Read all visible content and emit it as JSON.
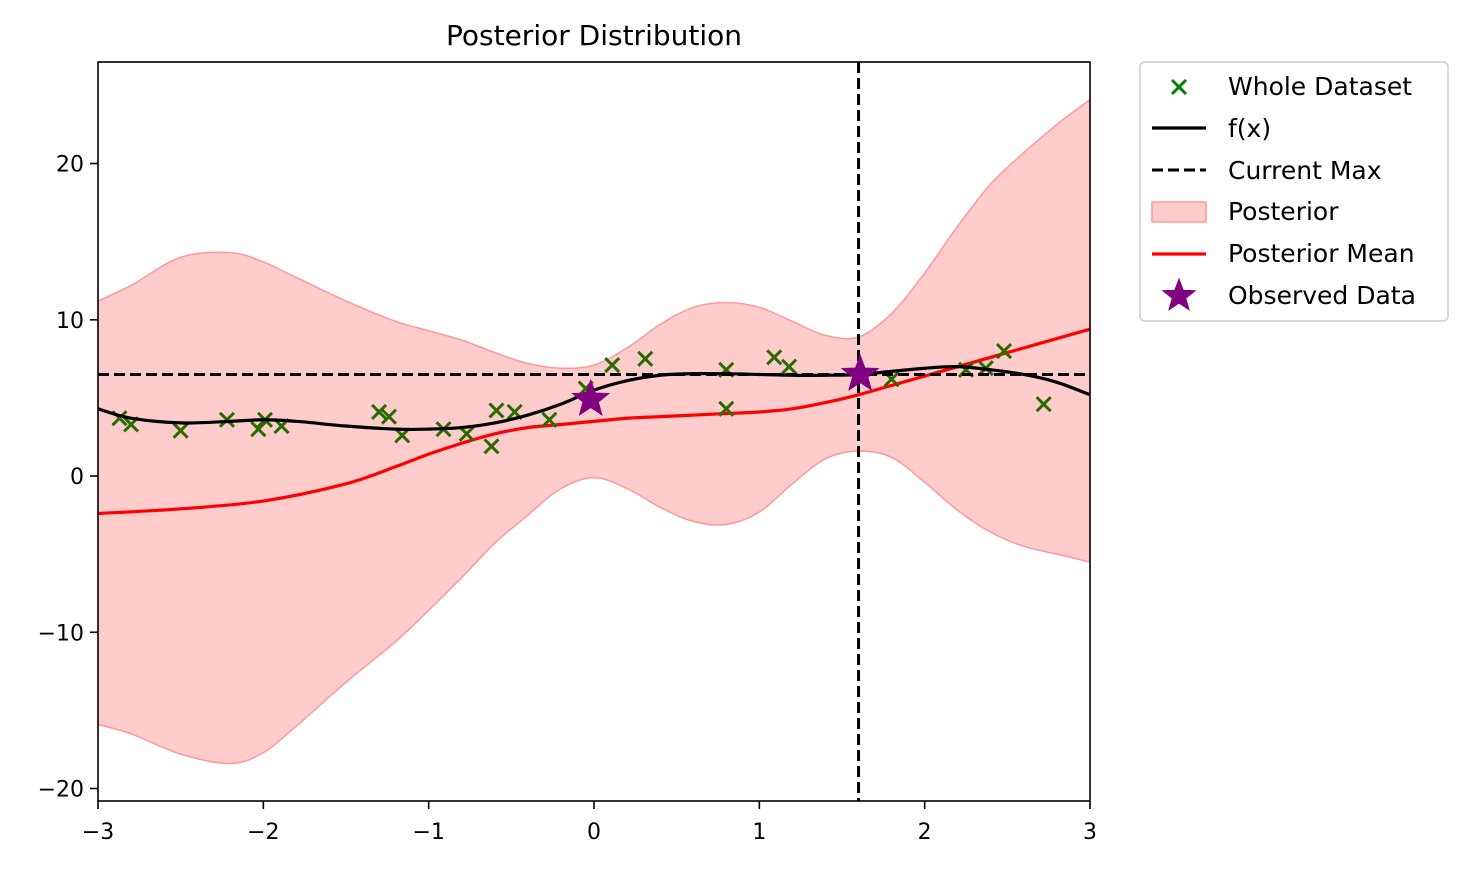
{
  "chart_data": {
    "type": "line",
    "title": "Posterior Distribution",
    "xlabel": "",
    "ylabel": "",
    "xlim": [
      -3,
      3
    ],
    "ylim": [
      -20.8,
      26.5
    ],
    "x_ticks": [
      -3,
      -2,
      -1,
      0,
      1,
      2,
      3
    ],
    "x_tick_labels": [
      "−3",
      "−2",
      "−1",
      "0",
      "1",
      "2",
      "3"
    ],
    "y_ticks": [
      -20,
      -10,
      0,
      10,
      20
    ],
    "y_tick_labels": [
      "−20",
      "−10",
      "0",
      "10",
      "20"
    ],
    "grid": false,
    "legend_position": "outside-upper-right",
    "legend": [
      {
        "key": "whole_dataset",
        "label": "Whole Dataset"
      },
      {
        "key": "f",
        "label": "f(x)"
      },
      {
        "key": "current_max",
        "label": "Current Max"
      },
      {
        "key": "posterior",
        "label": "Posterior"
      },
      {
        "key": "posterior_mean",
        "label": "Posterior Mean"
      },
      {
        "key": "observed",
        "label": "Observed Data"
      }
    ],
    "colors": {
      "whole_dataset": "#008000",
      "f": "#000000",
      "current_max": "#000000",
      "posterior_fill": "#ffcccc",
      "posterior_edge": "#ff9999",
      "posterior_mean": "#ff0000",
      "observed": "#800080"
    },
    "current_max": {
      "x": 1.6,
      "y": 6.5
    },
    "f_curve": {
      "x": [
        -3.0,
        -2.8,
        -2.5,
        -2.2,
        -2.0,
        -1.8,
        -1.5,
        -1.2,
        -1.0,
        -0.8,
        -0.6,
        -0.4,
        -0.2,
        0.0,
        0.2,
        0.4,
        0.6,
        0.8,
        1.0,
        1.2,
        1.4,
        1.6,
        1.8,
        2.0,
        2.2,
        2.4,
        2.6,
        2.8,
        3.0
      ],
      "y": [
        4.3,
        3.7,
        3.4,
        3.5,
        3.6,
        3.5,
        3.2,
        3.0,
        3.0,
        3.1,
        3.4,
        3.9,
        4.6,
        5.5,
        6.1,
        6.45,
        6.55,
        6.55,
        6.5,
        6.45,
        6.45,
        6.5,
        6.7,
        6.9,
        7.0,
        6.8,
        6.5,
        6.0,
        5.2
      ]
    },
    "posterior_mean": {
      "x": [
        -3.0,
        -2.5,
        -2.0,
        -1.5,
        -1.2,
        -1.0,
        -0.8,
        -0.6,
        -0.4,
        -0.2,
        0.0,
        0.2,
        0.4,
        0.6,
        0.8,
        1.0,
        1.2,
        1.4,
        1.6,
        1.8,
        2.0,
        2.2,
        2.4,
        2.6,
        2.8,
        3.0
      ],
      "y": [
        -2.4,
        -2.1,
        -1.6,
        -0.5,
        0.6,
        1.4,
        2.1,
        2.7,
        3.1,
        3.3,
        3.5,
        3.7,
        3.8,
        3.9,
        4.0,
        4.1,
        4.3,
        4.7,
        5.2,
        5.8,
        6.4,
        7.0,
        7.6,
        8.2,
        8.8,
        9.4
      ]
    },
    "posterior_band": {
      "x": [
        -3.0,
        -2.8,
        -2.5,
        -2.2,
        -2.0,
        -1.8,
        -1.5,
        -1.2,
        -1.0,
        -0.8,
        -0.6,
        -0.4,
        -0.2,
        0.0,
        0.2,
        0.4,
        0.6,
        0.8,
        1.0,
        1.2,
        1.4,
        1.6,
        1.8,
        2.0,
        2.2,
        2.4,
        2.6,
        2.8,
        3.0
      ],
      "upper": [
        11.2,
        12.2,
        14.0,
        14.3,
        13.7,
        12.7,
        11.2,
        9.9,
        9.3,
        8.7,
        7.9,
        7.2,
        6.9,
        7.1,
        8.2,
        9.7,
        10.8,
        11.1,
        10.8,
        9.9,
        9.0,
        8.9,
        10.4,
        13.0,
        16.0,
        18.7,
        20.7,
        22.5,
        24.1
      ],
      "lower": [
        -15.9,
        -16.5,
        -17.8,
        -18.4,
        -17.7,
        -16.0,
        -13.2,
        -10.6,
        -8.6,
        -6.5,
        -4.3,
        -2.5,
        -0.8,
        -0.1,
        -0.8,
        -2.0,
        -2.9,
        -3.1,
        -2.3,
        -0.5,
        1.1,
        1.6,
        1.2,
        -0.4,
        -2.2,
        -3.6,
        -4.5,
        -5.0,
        -5.5
      ]
    },
    "whole_dataset": {
      "x": [
        -2.87,
        -2.8,
        -2.5,
        -2.22,
        -2.03,
        -1.99,
        -1.89,
        -1.3,
        -1.24,
        -1.16,
        -0.91,
        -0.77,
        -0.62,
        -0.59,
        -0.48,
        -0.27,
        -0.05,
        0.11,
        0.31,
        0.8,
        0.8,
        1.09,
        1.18,
        1.8,
        2.25,
        2.37,
        2.48,
        2.72
      ],
      "y": [
        3.7,
        3.3,
        2.9,
        3.6,
        3.0,
        3.6,
        3.2,
        4.1,
        3.8,
        2.6,
        3.0,
        2.7,
        1.9,
        4.2,
        4.1,
        3.6,
        5.6,
        7.1,
        7.5,
        6.8,
        4.3,
        7.6,
        7.0,
        6.2,
        6.8,
        6.9,
        8.0,
        4.6
      ]
    },
    "observed": {
      "x": [
        -0.02,
        1.61
      ],
      "y": [
        4.9,
        6.5
      ]
    }
  }
}
